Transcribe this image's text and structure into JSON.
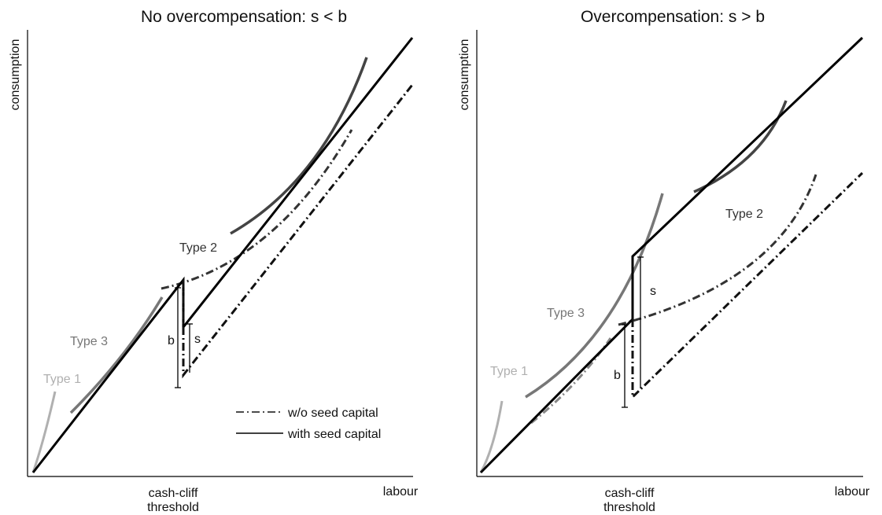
{
  "panels": [
    {
      "title": "No overcompensation: s < b",
      "ylabel": "consumption",
      "xlabel": "labour",
      "threshold_label_1": "cash-cliff",
      "threshold_label_2": "threshold",
      "type1": "Type 1",
      "type2": "Type 2",
      "type3": "Type 3",
      "b": "b",
      "s": "s",
      "legend": {
        "without": "w/o seed capital",
        "with": "with seed capital"
      }
    },
    {
      "title": "Overcompensation: s > b",
      "ylabel": "consumption",
      "xlabel": "labour",
      "threshold_label_1": "cash-cliff",
      "threshold_label_2": "threshold",
      "type1": "Type 1",
      "type2": "Type 2",
      "type3": "Type 3",
      "b": "b",
      "s": "s"
    }
  ],
  "colors": {
    "with_seed": "#000000",
    "without_seed": "#1a1a1a",
    "type1": "#b0b0b0",
    "type2": "#444444",
    "type3": "#777777"
  }
}
